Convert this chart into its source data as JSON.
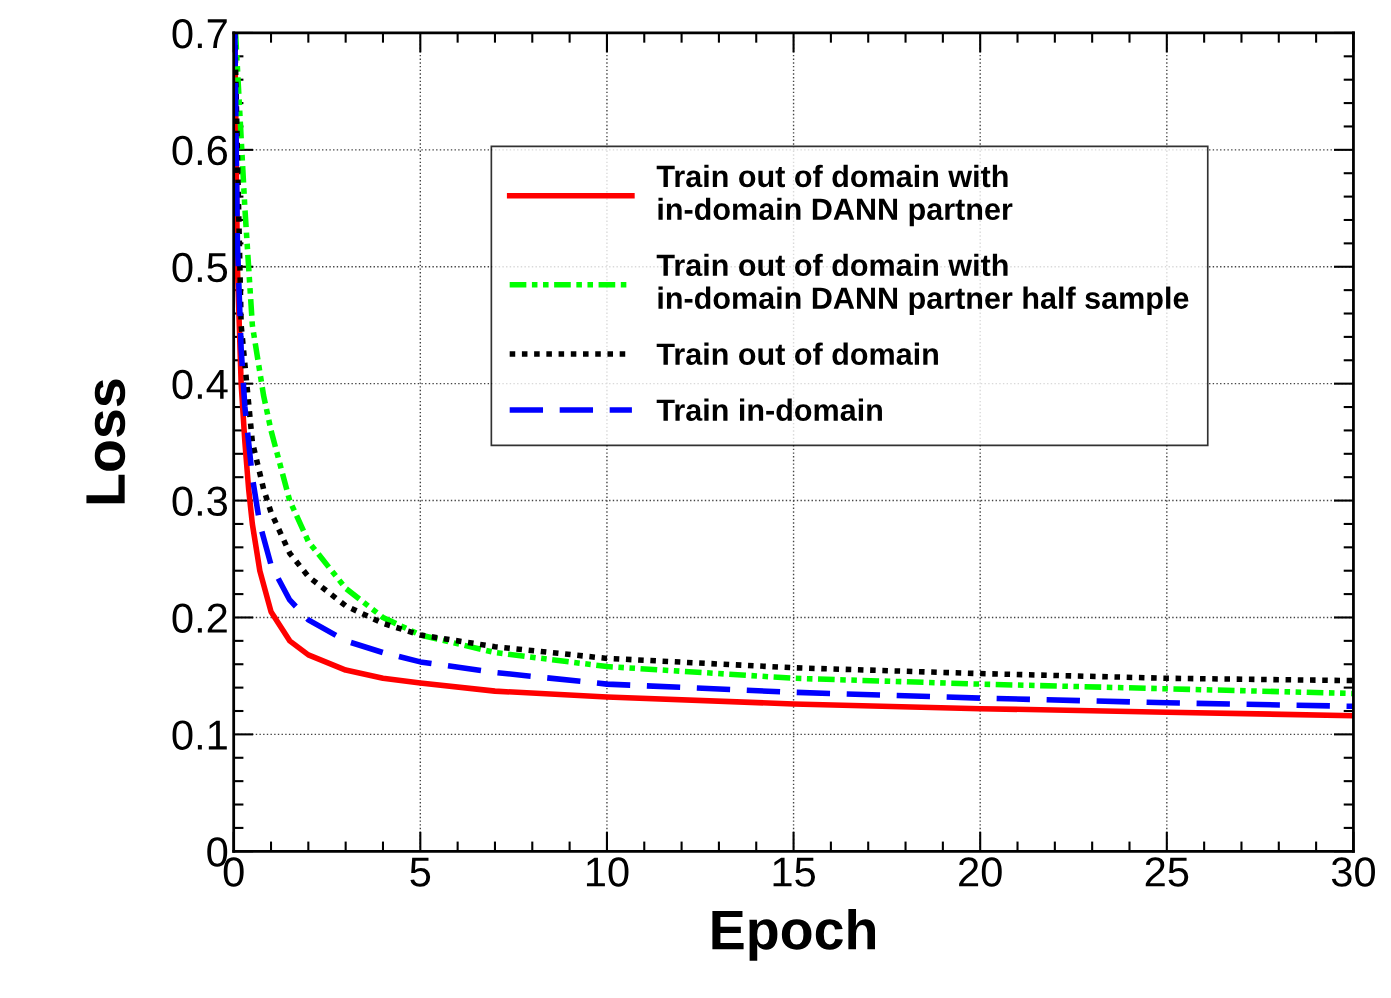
{
  "chart_data": {
    "type": "line",
    "xlabel": "Epoch",
    "ylabel": "Loss",
    "xlim": [
      0,
      30
    ],
    "ylim": [
      0,
      0.7
    ],
    "xticks": [
      0,
      5,
      10,
      15,
      20,
      25,
      30
    ],
    "yticks": [
      0,
      0.1,
      0.2,
      0.3,
      0.4,
      0.5,
      0.6,
      0.7
    ],
    "grid": true,
    "legend": "top",
    "series": [
      {
        "name": "Train out of domain with\nin-domain DANN partner",
        "color": "#ff0000",
        "line_style": "solid",
        "x": [
          0.03,
          0.1,
          0.2,
          0.3,
          0.4,
          0.5,
          0.7,
          1,
          1.5,
          2,
          3,
          4,
          5,
          7,
          10,
          15,
          20,
          25,
          30
        ],
        "values": [
          0.7,
          0.5,
          0.4,
          0.35,
          0.31,
          0.28,
          0.24,
          0.205,
          0.18,
          0.168,
          0.155,
          0.148,
          0.144,
          0.137,
          0.132,
          0.126,
          0.122,
          0.119,
          0.116
        ]
      },
      {
        "name": "Train out of domain with\nin-domain DANN partner half sample",
        "color": "#00ff00",
        "line_style": "dashdot",
        "x": [
          0.05,
          0.3,
          0.5,
          0.8,
          1,
          1.5,
          2,
          3,
          4,
          5,
          7,
          10,
          15,
          20,
          25,
          30
        ],
        "values": [
          0.7,
          0.55,
          0.45,
          0.39,
          0.36,
          0.3,
          0.265,
          0.225,
          0.2,
          0.185,
          0.17,
          0.158,
          0.148,
          0.143,
          0.139,
          0.135
        ]
      },
      {
        "name": "Train out of domain",
        "color": "#000000",
        "line_style": "dotted",
        "x": [
          0.03,
          0.2,
          0.5,
          0.8,
          1,
          1.5,
          2,
          3,
          4,
          5,
          7,
          10,
          15,
          20,
          25,
          30
        ],
        "values": [
          0.7,
          0.45,
          0.35,
          0.31,
          0.29,
          0.255,
          0.235,
          0.21,
          0.195,
          0.185,
          0.175,
          0.165,
          0.157,
          0.152,
          0.148,
          0.146
        ]
      },
      {
        "name": "Train in-domain",
        "color": "#0000ff",
        "line_style": "dashed",
        "x": [
          0.03,
          0.1,
          0.2,
          0.3,
          0.5,
          0.7,
          1,
          1.5,
          2,
          3,
          4,
          5,
          7,
          10,
          15,
          20,
          25,
          30
        ],
        "values": [
          0.7,
          0.52,
          0.43,
          0.38,
          0.32,
          0.28,
          0.245,
          0.215,
          0.198,
          0.18,
          0.17,
          0.162,
          0.153,
          0.143,
          0.136,
          0.131,
          0.127,
          0.124
        ]
      }
    ]
  }
}
